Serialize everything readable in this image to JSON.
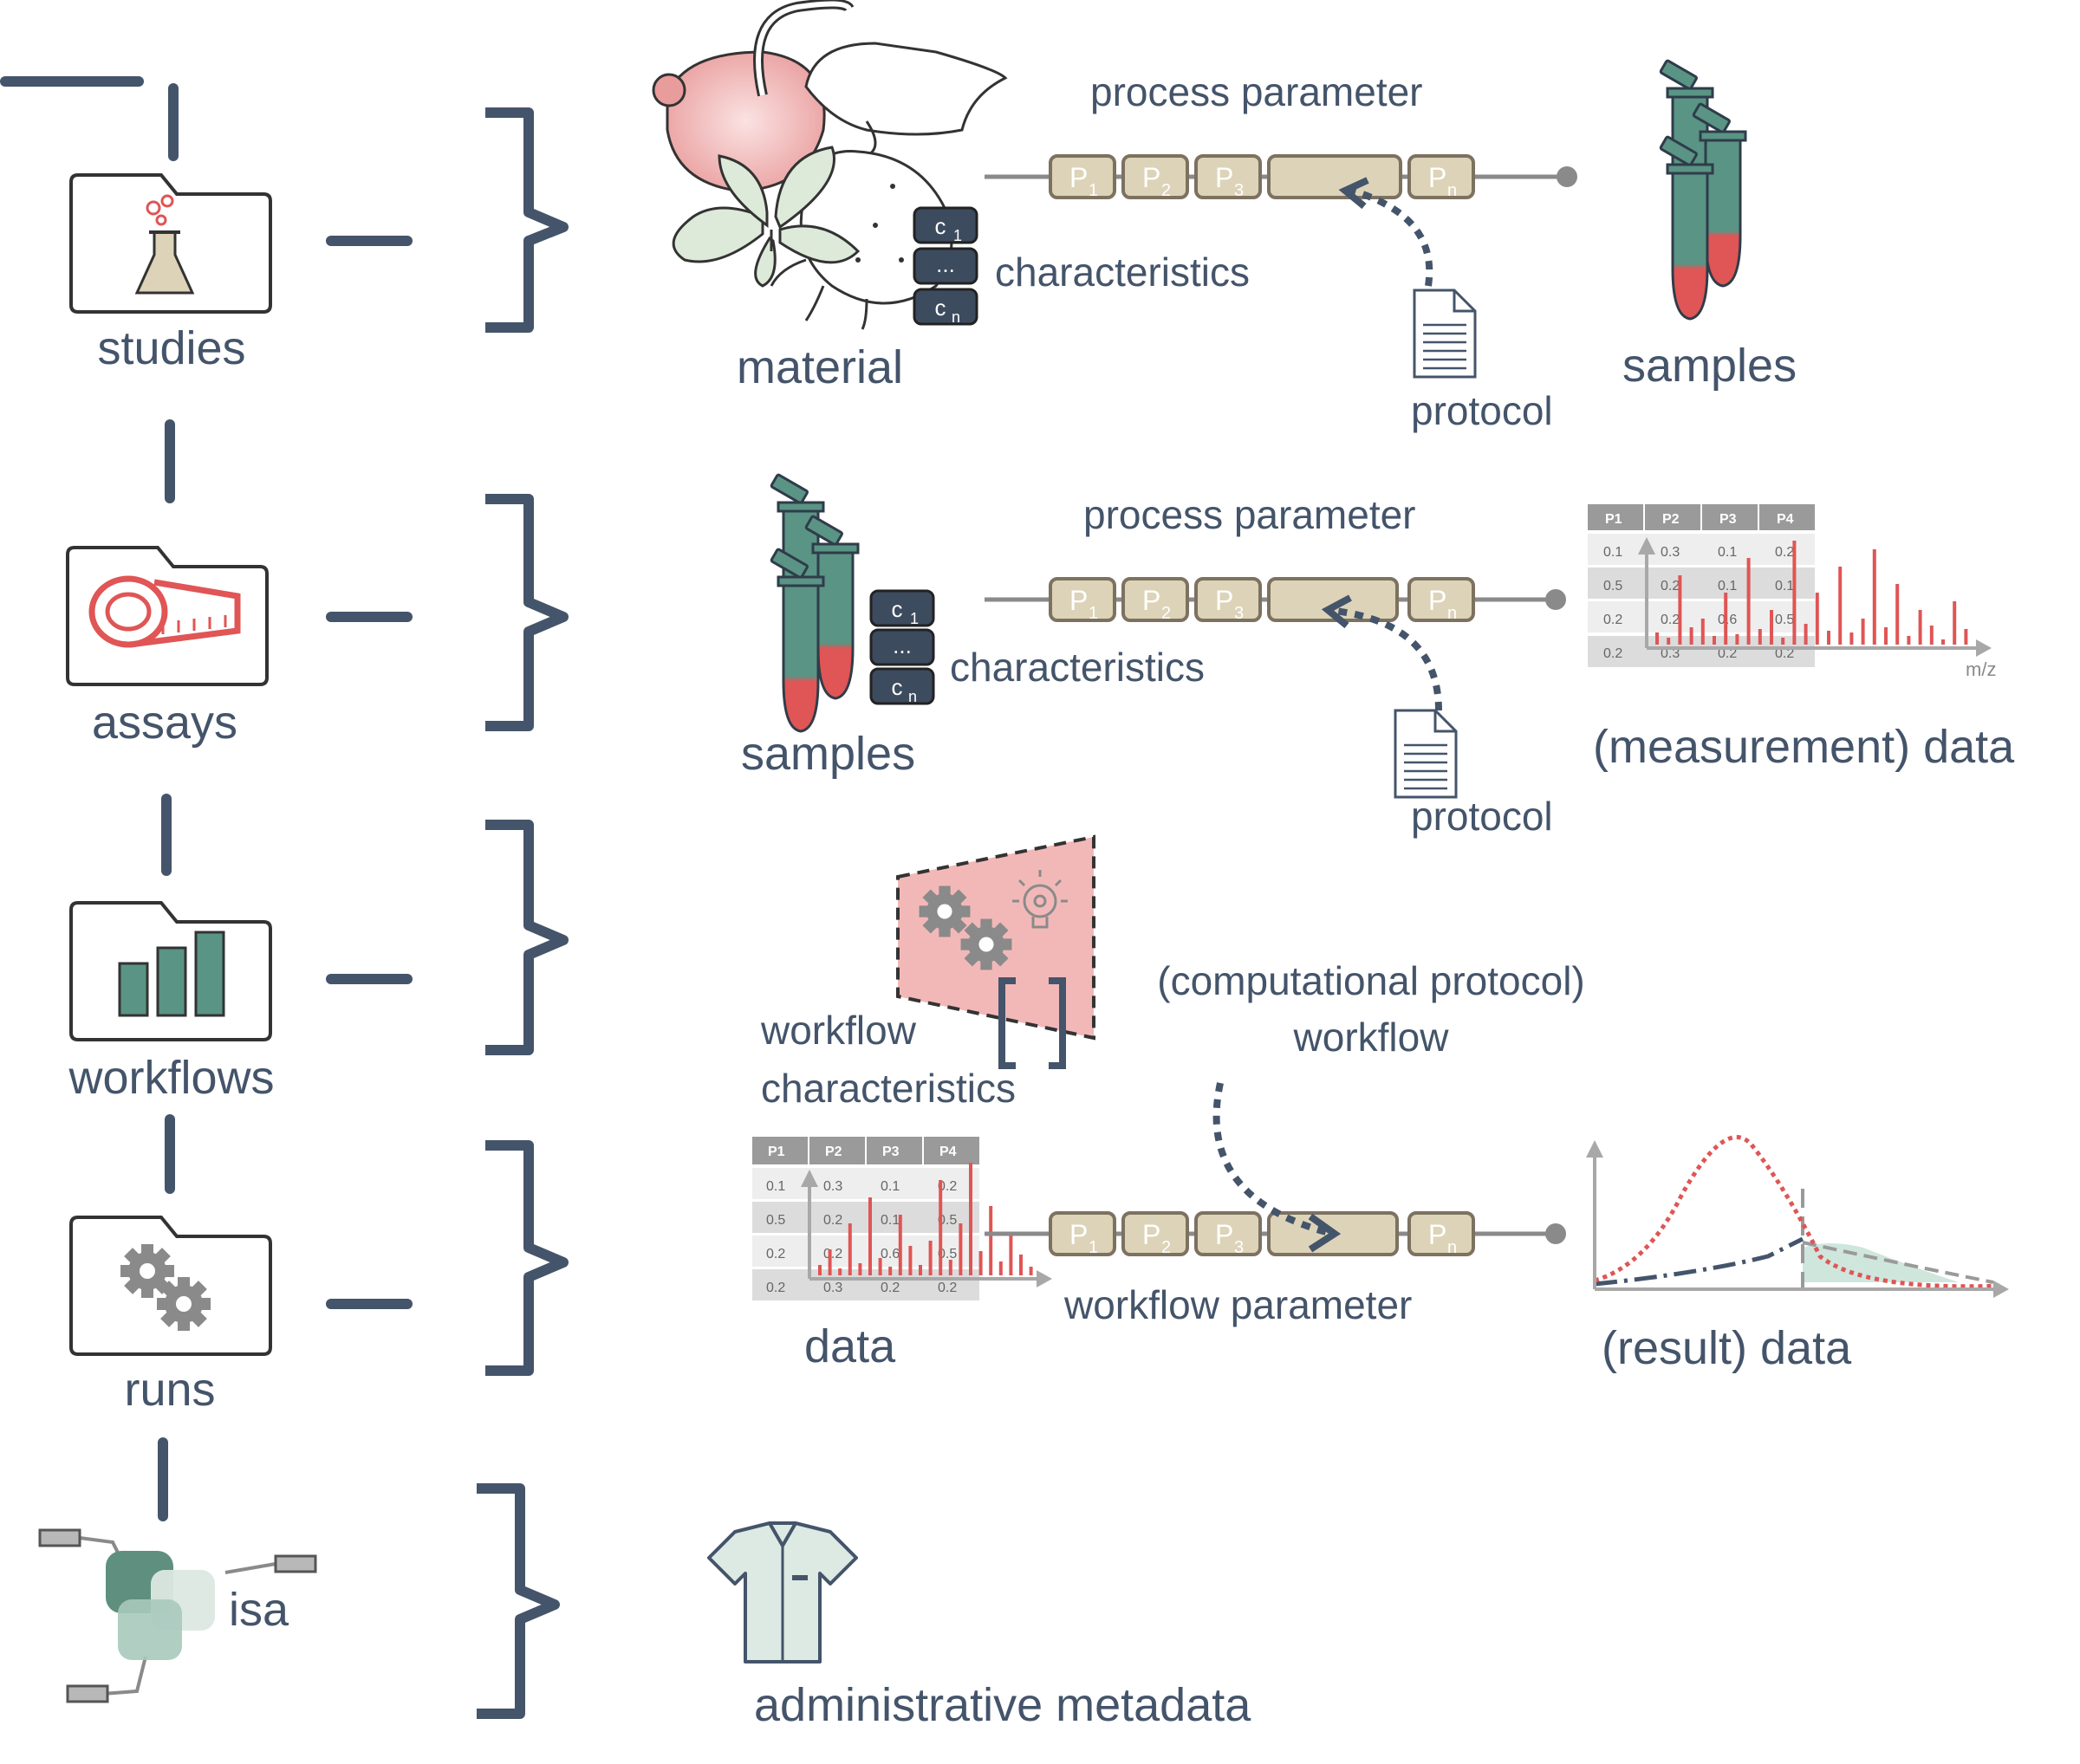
{
  "colors": {
    "slate": "#44546a",
    "teal": "#5a9484",
    "pink": "#f2b8b8",
    "red": "#e05555",
    "beige": "#ddd3b8",
    "beige_border": "#7d7160",
    "grey": "#9a9a9a",
    "mint": "#cfe6dd"
  },
  "hierarchy": {
    "studies": {
      "label": "studies",
      "icon": "flask-icon"
    },
    "assays": {
      "label": "assays",
      "icon": "measuring-tape-icon"
    },
    "workflows": {
      "label": "workflows",
      "icon": "bar-chart-icon"
    },
    "runs": {
      "label": "runs",
      "icon": "gears-icon"
    },
    "isa": {
      "label": "isa",
      "icon": "isa-logo-icon"
    }
  },
  "studies_row": {
    "material_label": "material",
    "characteristics_label": "characteristics",
    "char_boxes": [
      "c",
      "...",
      "c"
    ],
    "char_subs": [
      "1",
      "",
      "n"
    ],
    "process_parameter_label": "process parameter",
    "params": [
      "P",
      "P",
      "P",
      "P"
    ],
    "param_subs": [
      "1",
      "2",
      "3",
      "n"
    ],
    "protocol_label": "protocol",
    "output_label": "samples"
  },
  "assays_row": {
    "input_label": "samples",
    "characteristics_label": "characteristics",
    "char_boxes": [
      "c",
      "...",
      "c"
    ],
    "char_subs": [
      "1",
      "",
      "n"
    ],
    "process_parameter_label": "process parameter",
    "params": [
      "P",
      "P",
      "P",
      "P"
    ],
    "param_subs": [
      "1",
      "2",
      "3",
      "n"
    ],
    "protocol_label": "protocol",
    "output_label": "(measurement) data",
    "table_headers": [
      "P1",
      "P2",
      "P3",
      "P4"
    ],
    "table_rows": [
      [
        "0.1",
        "0.3",
        "0.1",
        "0.2"
      ],
      [
        "0.5",
        "0.2",
        "0.1",
        "0.1"
      ],
      [
        "0.2",
        "0.2",
        "0.6",
        "0.5"
      ],
      [
        "0.2",
        "0.3",
        "0.2",
        "0.2"
      ]
    ],
    "axis_label": "m/z"
  },
  "workflows_row": {
    "workflow_characteristics_line1": "workflow",
    "workflow_characteristics_line2": "characteristics",
    "computational_line1": "(computational protocol)",
    "computational_line2": "workflow"
  },
  "runs_row": {
    "input_label": "data",
    "table_headers": [
      "P1",
      "P2",
      "P3",
      "P4"
    ],
    "table_rows": [
      [
        "0.1",
        "0.3",
        "0.1",
        "0.2"
      ],
      [
        "0.5",
        "0.2",
        "0.1",
        "0.5"
      ],
      [
        "0.2",
        "0.2",
        "0.6",
        "0.5"
      ],
      [
        "0.2",
        "0.3",
        "0.2",
        "0.2"
      ]
    ],
    "params": [
      "P",
      "P",
      "P",
      "P"
    ],
    "param_subs": [
      "1",
      "2",
      "3",
      "n"
    ],
    "workflow_parameter_label": "workflow parameter",
    "output_label": "(result) data"
  },
  "isa_row": {
    "label": "administrative metadata",
    "icon": "shirt-icon"
  }
}
